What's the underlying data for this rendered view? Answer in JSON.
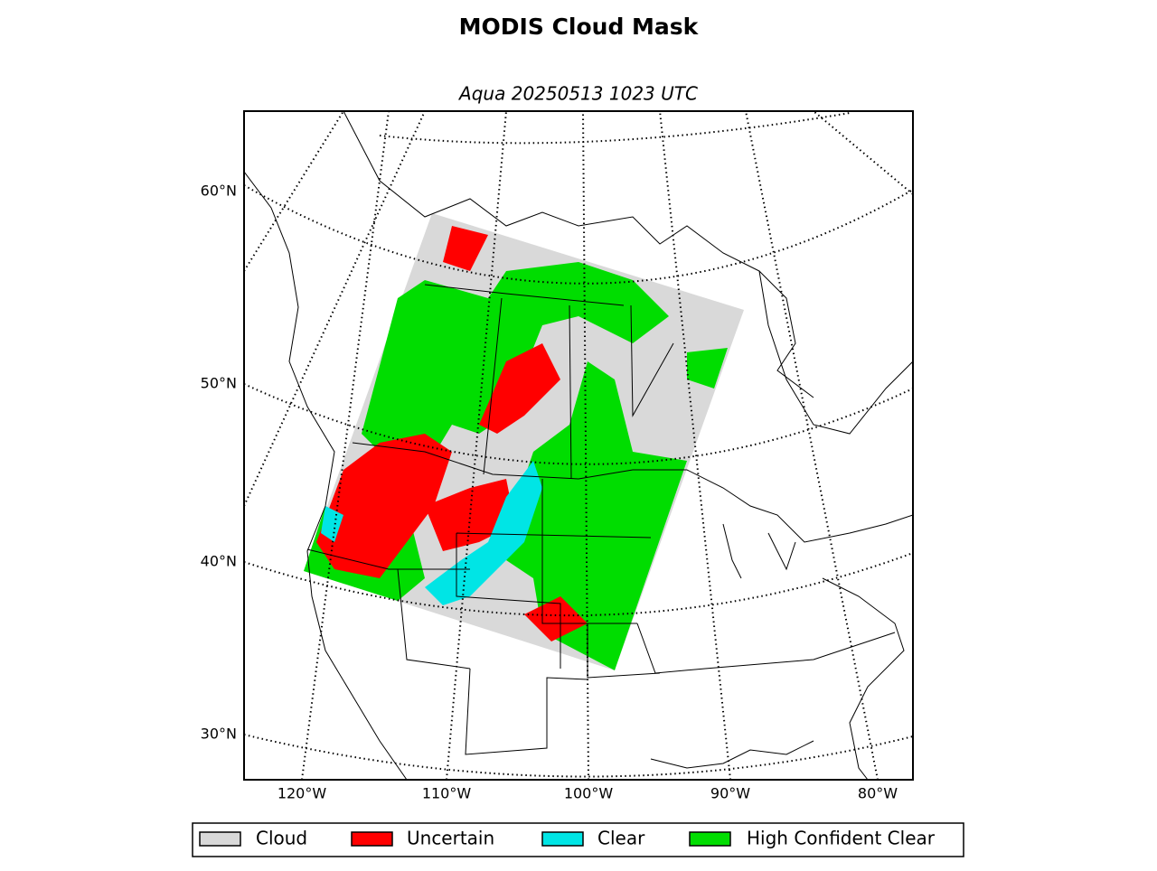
{
  "title": "MODIS Cloud Mask",
  "subtitle": "Aqua 20250513 1023 UTC",
  "map": {
    "lat_labels": [
      "60°N",
      "50°N",
      "40°N",
      "30°N"
    ],
    "lon_labels": [
      "120°W",
      "110°W",
      "100°W",
      "90°W",
      "80°W"
    ]
  },
  "legend": [
    {
      "label": "Cloud",
      "color": "#d9d9d9"
    },
    {
      "label": "Uncertain",
      "color": "#ff0000"
    },
    {
      "label": "Clear",
      "color": "#00e5e5"
    },
    {
      "label": "High Confident Clear",
      "color": "#00dd00"
    }
  ]
}
